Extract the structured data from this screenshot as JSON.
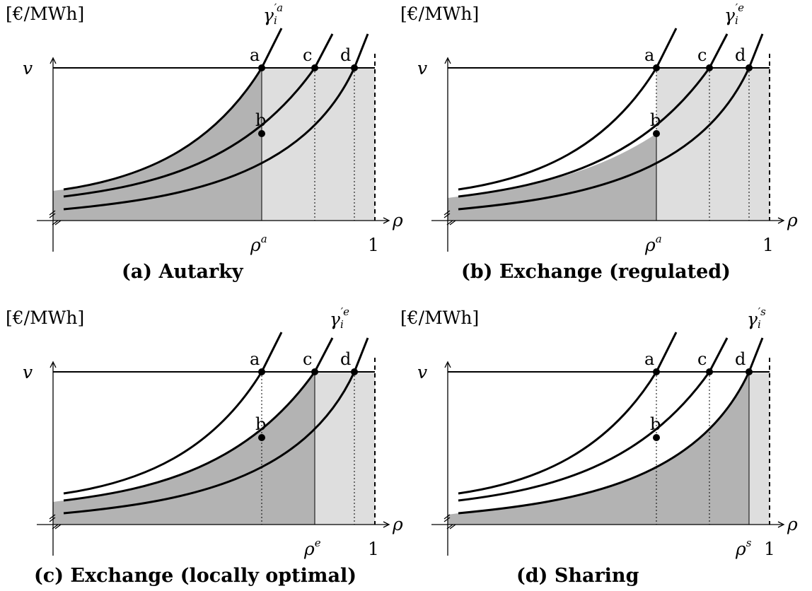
{
  "ylabel": "[€/MWh]",
  "v_label": "v",
  "rho_label": "ρ",
  "one_label": "1",
  "points": [
    "a",
    "b",
    "c",
    "d"
  ],
  "colors": {
    "dark_region": "#b3b3b3",
    "light_region": "#dedede",
    "curve": "#000000"
  },
  "panels": [
    {
      "gamma_sup": "′a",
      "caption": "(a) Autarky",
      "rho_sup": "a"
    },
    {
      "gamma_sup": "′e",
      "caption": "(b) Exchange (regulated)",
      "rho_sup": "a"
    },
    {
      "gamma_sup": "′e",
      "caption": "(c) Exchange (locally optimal)",
      "rho_sup": "e"
    },
    {
      "gamma_sup": "′s",
      "caption": "(d) Sharing",
      "rho_sup": "s"
    }
  ]
}
